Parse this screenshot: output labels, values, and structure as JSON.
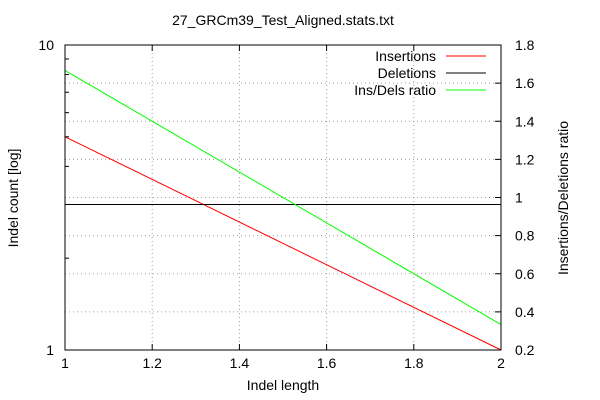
{
  "chart_data": {
    "type": "line",
    "title": "27_GRCm39_Test_Aligned.stats.txt",
    "xlabel": "Indel length",
    "ylabel": "Indel count [log]",
    "y2label": "Insertions/Deletions ratio",
    "xlim": [
      1,
      2
    ],
    "ylim": [
      1,
      10
    ],
    "yscale": "log",
    "y2lim": [
      0.2,
      1.8
    ],
    "grid": true,
    "legend_position": "top-right",
    "x_ticks": [
      "1",
      "1.2",
      "1.4",
      "1.6",
      "1.8",
      "2"
    ],
    "x_tick_values": [
      1,
      1.2,
      1.4,
      1.6,
      1.8,
      2
    ],
    "y_ticks": [
      "1",
      "10"
    ],
    "y_tick_values": [
      1,
      10
    ],
    "y2_ticks": [
      "0.2",
      "0.4",
      "0.6",
      "0.8",
      "1",
      "1.2",
      "1.4",
      "1.6",
      "1.8"
    ],
    "y2_tick_values": [
      0.2,
      0.4,
      0.6,
      0.8,
      1,
      1.2,
      1.4,
      1.6,
      1.8
    ],
    "series": [
      {
        "name": "Insertions",
        "axis": "y",
        "color": "#ff0000",
        "x": [
          1,
          2
        ],
        "y": [
          5,
          1
        ]
      },
      {
        "name": "Deletions",
        "axis": "y",
        "color": "#000000",
        "x": [
          1,
          2
        ],
        "y": [
          3,
          3
        ]
      },
      {
        "name": "Ins/Dels ratio",
        "axis": "y2",
        "color": "#00ff00",
        "x": [
          1,
          2
        ],
        "y": [
          1.667,
          0.333
        ]
      }
    ]
  }
}
